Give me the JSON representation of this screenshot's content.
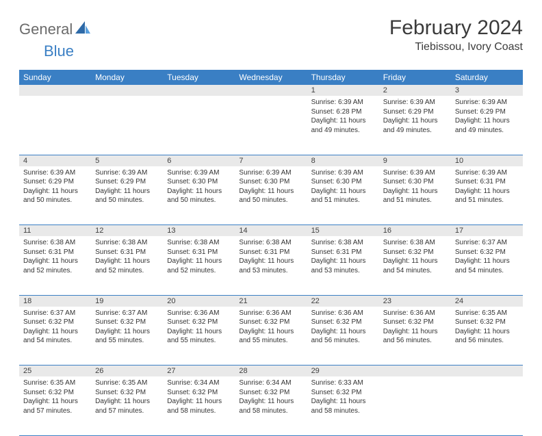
{
  "brand": {
    "part1": "General",
    "part2": "Blue"
  },
  "title": "February 2024",
  "location": "Tiebissou, Ivory Coast",
  "colors": {
    "header_bg": "#3a7fc4",
    "header_text": "#ffffff",
    "daynum_bg": "#e9e9e9",
    "rule": "#3a7fc4",
    "body_text": "#333333",
    "brand_gray": "#6b6b6b",
    "brand_blue": "#3a7fc4"
  },
  "weekdays": [
    "Sunday",
    "Monday",
    "Tuesday",
    "Wednesday",
    "Thursday",
    "Friday",
    "Saturday"
  ],
  "weeks": [
    {
      "nums": [
        "",
        "",
        "",
        "",
        "1",
        "2",
        "3"
      ],
      "cells": [
        null,
        null,
        null,
        null,
        {
          "sunrise": "Sunrise: 6:39 AM",
          "sunset": "Sunset: 6:28 PM",
          "day1": "Daylight: 11 hours",
          "day2": "and 49 minutes."
        },
        {
          "sunrise": "Sunrise: 6:39 AM",
          "sunset": "Sunset: 6:29 PM",
          "day1": "Daylight: 11 hours",
          "day2": "and 49 minutes."
        },
        {
          "sunrise": "Sunrise: 6:39 AM",
          "sunset": "Sunset: 6:29 PM",
          "day1": "Daylight: 11 hours",
          "day2": "and 49 minutes."
        }
      ]
    },
    {
      "nums": [
        "4",
        "5",
        "6",
        "7",
        "8",
        "9",
        "10"
      ],
      "cells": [
        {
          "sunrise": "Sunrise: 6:39 AM",
          "sunset": "Sunset: 6:29 PM",
          "day1": "Daylight: 11 hours",
          "day2": "and 50 minutes."
        },
        {
          "sunrise": "Sunrise: 6:39 AM",
          "sunset": "Sunset: 6:29 PM",
          "day1": "Daylight: 11 hours",
          "day2": "and 50 minutes."
        },
        {
          "sunrise": "Sunrise: 6:39 AM",
          "sunset": "Sunset: 6:30 PM",
          "day1": "Daylight: 11 hours",
          "day2": "and 50 minutes."
        },
        {
          "sunrise": "Sunrise: 6:39 AM",
          "sunset": "Sunset: 6:30 PM",
          "day1": "Daylight: 11 hours",
          "day2": "and 50 minutes."
        },
        {
          "sunrise": "Sunrise: 6:39 AM",
          "sunset": "Sunset: 6:30 PM",
          "day1": "Daylight: 11 hours",
          "day2": "and 51 minutes."
        },
        {
          "sunrise": "Sunrise: 6:39 AM",
          "sunset": "Sunset: 6:30 PM",
          "day1": "Daylight: 11 hours",
          "day2": "and 51 minutes."
        },
        {
          "sunrise": "Sunrise: 6:39 AM",
          "sunset": "Sunset: 6:31 PM",
          "day1": "Daylight: 11 hours",
          "day2": "and 51 minutes."
        }
      ]
    },
    {
      "nums": [
        "11",
        "12",
        "13",
        "14",
        "15",
        "16",
        "17"
      ],
      "cells": [
        {
          "sunrise": "Sunrise: 6:38 AM",
          "sunset": "Sunset: 6:31 PM",
          "day1": "Daylight: 11 hours",
          "day2": "and 52 minutes."
        },
        {
          "sunrise": "Sunrise: 6:38 AM",
          "sunset": "Sunset: 6:31 PM",
          "day1": "Daylight: 11 hours",
          "day2": "and 52 minutes."
        },
        {
          "sunrise": "Sunrise: 6:38 AM",
          "sunset": "Sunset: 6:31 PM",
          "day1": "Daylight: 11 hours",
          "day2": "and 52 minutes."
        },
        {
          "sunrise": "Sunrise: 6:38 AM",
          "sunset": "Sunset: 6:31 PM",
          "day1": "Daylight: 11 hours",
          "day2": "and 53 minutes."
        },
        {
          "sunrise": "Sunrise: 6:38 AM",
          "sunset": "Sunset: 6:31 PM",
          "day1": "Daylight: 11 hours",
          "day2": "and 53 minutes."
        },
        {
          "sunrise": "Sunrise: 6:38 AM",
          "sunset": "Sunset: 6:32 PM",
          "day1": "Daylight: 11 hours",
          "day2": "and 54 minutes."
        },
        {
          "sunrise": "Sunrise: 6:37 AM",
          "sunset": "Sunset: 6:32 PM",
          "day1": "Daylight: 11 hours",
          "day2": "and 54 minutes."
        }
      ]
    },
    {
      "nums": [
        "18",
        "19",
        "20",
        "21",
        "22",
        "23",
        "24"
      ],
      "cells": [
        {
          "sunrise": "Sunrise: 6:37 AM",
          "sunset": "Sunset: 6:32 PM",
          "day1": "Daylight: 11 hours",
          "day2": "and 54 minutes."
        },
        {
          "sunrise": "Sunrise: 6:37 AM",
          "sunset": "Sunset: 6:32 PM",
          "day1": "Daylight: 11 hours",
          "day2": "and 55 minutes."
        },
        {
          "sunrise": "Sunrise: 6:36 AM",
          "sunset": "Sunset: 6:32 PM",
          "day1": "Daylight: 11 hours",
          "day2": "and 55 minutes."
        },
        {
          "sunrise": "Sunrise: 6:36 AM",
          "sunset": "Sunset: 6:32 PM",
          "day1": "Daylight: 11 hours",
          "day2": "and 55 minutes."
        },
        {
          "sunrise": "Sunrise: 6:36 AM",
          "sunset": "Sunset: 6:32 PM",
          "day1": "Daylight: 11 hours",
          "day2": "and 56 minutes."
        },
        {
          "sunrise": "Sunrise: 6:36 AM",
          "sunset": "Sunset: 6:32 PM",
          "day1": "Daylight: 11 hours",
          "day2": "and 56 minutes."
        },
        {
          "sunrise": "Sunrise: 6:35 AM",
          "sunset": "Sunset: 6:32 PM",
          "day1": "Daylight: 11 hours",
          "day2": "and 56 minutes."
        }
      ]
    },
    {
      "nums": [
        "25",
        "26",
        "27",
        "28",
        "29",
        "",
        ""
      ],
      "cells": [
        {
          "sunrise": "Sunrise: 6:35 AM",
          "sunset": "Sunset: 6:32 PM",
          "day1": "Daylight: 11 hours",
          "day2": "and 57 minutes."
        },
        {
          "sunrise": "Sunrise: 6:35 AM",
          "sunset": "Sunset: 6:32 PM",
          "day1": "Daylight: 11 hours",
          "day2": "and 57 minutes."
        },
        {
          "sunrise": "Sunrise: 6:34 AM",
          "sunset": "Sunset: 6:32 PM",
          "day1": "Daylight: 11 hours",
          "day2": "and 58 minutes."
        },
        {
          "sunrise": "Sunrise: 6:34 AM",
          "sunset": "Sunset: 6:32 PM",
          "day1": "Daylight: 11 hours",
          "day2": "and 58 minutes."
        },
        {
          "sunrise": "Sunrise: 6:33 AM",
          "sunset": "Sunset: 6:32 PM",
          "day1": "Daylight: 11 hours",
          "day2": "and 58 minutes."
        },
        null,
        null
      ]
    }
  ]
}
